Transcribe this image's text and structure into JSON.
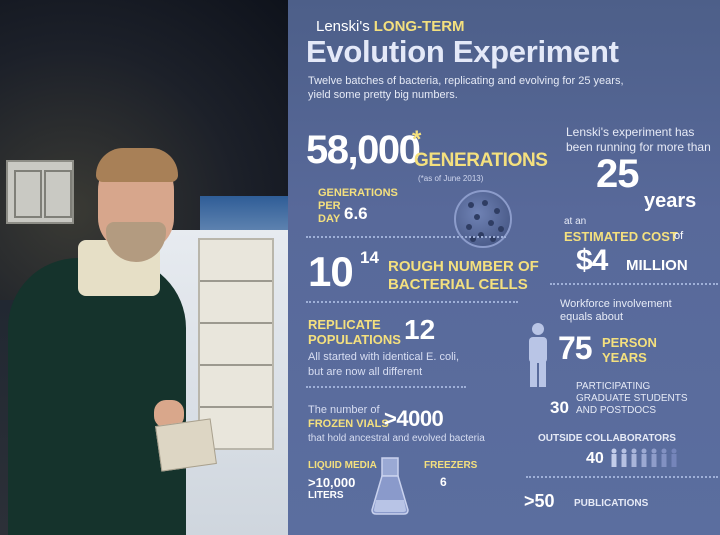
{
  "header": {
    "lenski": "Lenski's",
    "long_term": "LONG-TERM",
    "title": "Evolution Experiment",
    "subtitle_line1": "Twelve batches of bacteria, replicating and evolving for 25 years,",
    "subtitle_line2": "yield some pretty big numbers."
  },
  "generations": {
    "value": "58,000",
    "asterisk": "*",
    "label": "GENERATIONS",
    "note": "(*as of June 2013)",
    "per_day_line1": "GENERATIONS",
    "per_day_line2": "PER",
    "per_day_line3": "DAY",
    "per_day_value": "6.6"
  },
  "cells": {
    "base": "10",
    "exponent": "14",
    "label_line1": "ROUGH NUMBER OF",
    "label_line2": "BACTERIAL CELLS"
  },
  "replicates": {
    "label_line1": "REPLICATE",
    "label_line2": "POPULATIONS",
    "value": "12",
    "desc_line1": "All started with identical E. coli,",
    "desc_line2": "but are now all different"
  },
  "frozen_vials": {
    "intro": "The number of",
    "label": "FROZEN VIALS",
    "value": ">4000",
    "desc": "that hold ancestral and evolved bacteria"
  },
  "liquid_media": {
    "label": "LIQUID MEDIA",
    "value": ">10,000",
    "unit": "LITERS"
  },
  "freezers": {
    "label": "FREEZERS",
    "value": "6"
  },
  "running": {
    "line1": "Lenski's experiment has",
    "line2": "been running for more than",
    "value": "25",
    "unit": "years"
  },
  "cost": {
    "at_an": "at an",
    "label": "ESTIMATED COST",
    "of": "of",
    "value": "$4",
    "unit": "MILLION"
  },
  "workforce": {
    "line1": "Workforce involvement",
    "line2": "equals about",
    "value": "75",
    "label_line1": "PERSON",
    "label_line2": "YEARS"
  },
  "grad_students": {
    "value": "30",
    "line1": "PARTICIPATING",
    "line2": "GRADUATE STUDENTS",
    "line3": "AND POSTDOCS"
  },
  "collaborators": {
    "label": "OUTSIDE COLLABORATORS",
    "value": "40"
  },
  "publications": {
    "value": ">50",
    "label": "PUBLICATIONS"
  },
  "colors": {
    "panel": "#55679a",
    "accent_yellow": "#f4e07e",
    "text_light": "#e6eaf6"
  }
}
